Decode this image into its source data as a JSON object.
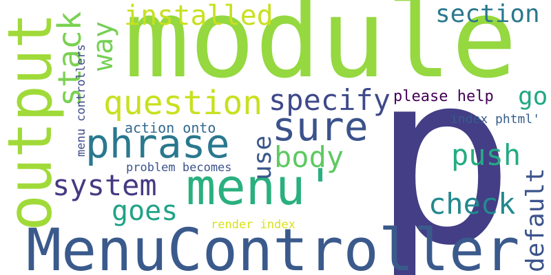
{
  "title": "Word cloud",
  "background": "#ffffff",
  "words": {
    "module": {
      "text": "module",
      "color": "#95d840"
    },
    "p": {
      "text": "p",
      "color": "#433e85"
    },
    "menucontroller": {
      "text": "MenuController",
      "color": "#3b5a8c"
    },
    "output": {
      "text": "output",
      "color": "#a0da39"
    },
    "menu_apos": {
      "text": "menu'",
      "color": "#2ab07f"
    },
    "phrase": {
      "text": "phrase",
      "color": "#2a788e"
    },
    "sure": {
      "text": "sure",
      "color": "#3b528b"
    },
    "question": {
      "text": "question",
      "color": "#c8e020"
    },
    "system": {
      "text": "system",
      "color": "#443a83"
    },
    "specify": {
      "text": "specify",
      "color": "#3e4989"
    },
    "body": {
      "text": "body",
      "color": "#5ec962"
    },
    "push": {
      "text": "push",
      "color": "#25ab82"
    },
    "check": {
      "text": "check",
      "color": "#23898e"
    },
    "installed": {
      "text": "installed",
      "color": "#c8e020"
    },
    "goes": {
      "text": "goes",
      "color": "#20a386"
    },
    "section": {
      "text": "section",
      "color": "#2a788e"
    },
    "go": {
      "text": "go",
      "color": "#22a884"
    },
    "stack": {
      "text": "stack",
      "color": "#7ad151"
    },
    "way": {
      "text": "way",
      "color": "#75d054"
    },
    "use": {
      "text": "use",
      "color": "#39568c"
    },
    "default": {
      "text": "default",
      "color": "#3b528b"
    },
    "please_help": {
      "text": "please help",
      "color": "#440154"
    },
    "action_onto": {
      "text": "action onto",
      "color": "#31688e"
    },
    "index_phtml": {
      "text": "index phtml'",
      "color": "#365d8d"
    },
    "problem_becomes": {
      "text": "problem becomes",
      "color": "#3b528b"
    },
    "render_index": {
      "text": "render index",
      "color": "#d8e219"
    },
    "menu_controllers": {
      "text": "menu controllers",
      "color": "#3e4989"
    }
  }
}
